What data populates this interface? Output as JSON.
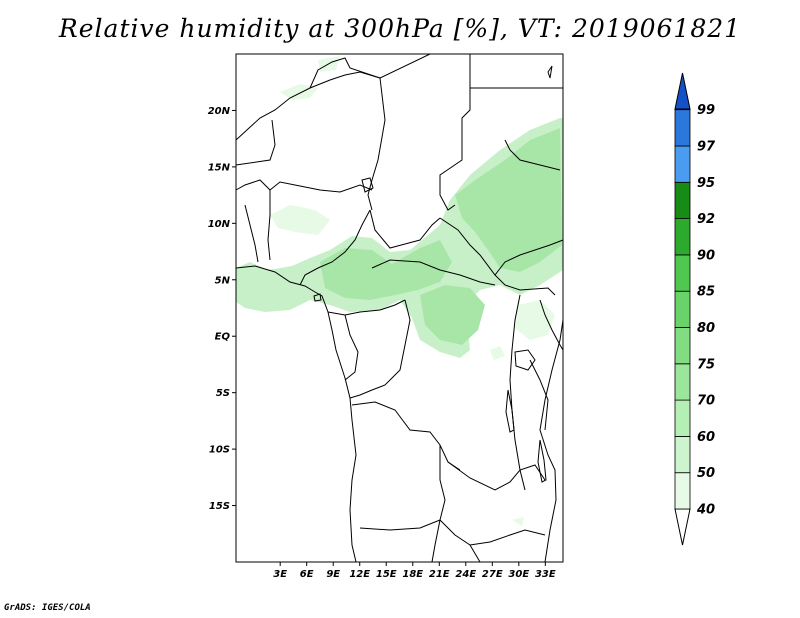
{
  "title": "Relative humidity at 300hPa [%], VT: 2019061821",
  "credit": "GrADS: IGES/COLA",
  "map": {
    "lon_range": [
      -2,
      35
    ],
    "lat_range": [
      -20,
      25
    ],
    "lat_ticks": [
      {
        "lat": 20,
        "label": "20N"
      },
      {
        "lat": 15,
        "label": "15N"
      },
      {
        "lat": 10,
        "label": "10N"
      },
      {
        "lat": 5,
        "label": "5N"
      },
      {
        "lat": 0,
        "label": "EQ"
      },
      {
        "lat": -5,
        "label": "5S"
      },
      {
        "lat": -10,
        "label": "10S"
      },
      {
        "lat": -15,
        "label": "15S"
      }
    ],
    "lon_ticks": [
      {
        "lon": 3,
        "label": "3E"
      },
      {
        "lon": 6,
        "label": "6E"
      },
      {
        "lon": 9,
        "label": "9E"
      },
      {
        "lon": 12,
        "label": "12E"
      },
      {
        "lon": 15,
        "label": "15E"
      },
      {
        "lon": 18,
        "label": "18E"
      },
      {
        "lon": 21,
        "label": "21E"
      },
      {
        "lon": 24,
        "label": "24E"
      },
      {
        "lon": 27,
        "label": "27E"
      },
      {
        "lon": 30,
        "label": "30E"
      },
      {
        "lon": 33,
        "label": "33E"
      }
    ]
  },
  "colorbar": {
    "levels": [
      "40",
      "50",
      "60",
      "70",
      "75",
      "80",
      "85",
      "90",
      "92",
      "95",
      "97",
      "99"
    ],
    "colors": [
      "#e6fae6",
      "#cdf5cd",
      "#b4f0b4",
      "#9be69b",
      "#82dc82",
      "#69d269",
      "#50c850",
      "#2daa2d",
      "#168c16",
      "#4a9cf0",
      "#2a78dc",
      "#1450c8"
    ],
    "under_color": "#ffffff",
    "over_color": "#1450c8"
  },
  "humidity_colors": {
    "low": "#e6fae6",
    "mid": "#c8f0c8",
    "high": "#a8e6a8"
  }
}
